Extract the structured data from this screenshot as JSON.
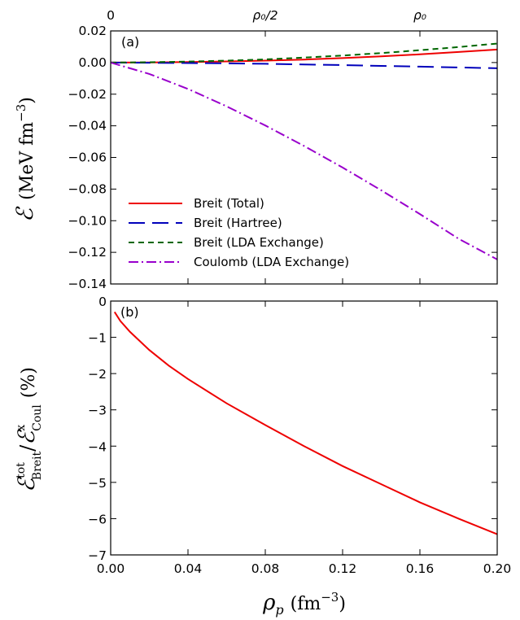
{
  "chart_data": [
    {
      "type": "line",
      "panel_label": "(a)",
      "ylabel": "ℰ (MeV fm⁻³)",
      "xlim": [
        0.0,
        0.2
      ],
      "ylim": [
        -0.14,
        0.02
      ],
      "yticks": [
        0.02,
        0.0,
        -0.02,
        -0.04,
        -0.06,
        -0.08,
        -0.1,
        -0.12,
        -0.14
      ],
      "ytick_labels": [
        "0.02",
        "0.00",
        "−0.02",
        "−0.04",
        "−0.06",
        "−0.08",
        "−0.10",
        "−0.12",
        "−0.14"
      ],
      "top_axis": {
        "ticks": [
          0.0,
          0.08,
          0.16
        ],
        "labels": [
          "0",
          "ρ₀/2",
          "ρ₀"
        ]
      },
      "legend_position": "lower-left",
      "x": [
        0.0,
        0.02,
        0.04,
        0.06,
        0.08,
        0.1,
        0.12,
        0.14,
        0.16,
        0.18,
        0.2
      ],
      "series": [
        {
          "name": "Breit (Total)",
          "color": "#ee0000",
          "style": "solid",
          "values": [
            0.0,
            0.0001,
            0.0003,
            0.0007,
            0.0012,
            0.0019,
            0.0028,
            0.0039,
            0.0052,
            0.0067,
            0.0082
          ]
        },
        {
          "name": "Breit (Hartree)",
          "color": "#0000bb",
          "style": "long-dash",
          "values": [
            0.0,
            -0.0001,
            -0.0003,
            -0.0005,
            -0.0008,
            -0.0012,
            -0.0016,
            -0.0021,
            -0.0026,
            -0.0031,
            -0.0036
          ]
        },
        {
          "name": "Breit (LDA Exchange)",
          "color": "#006600",
          "style": "dash",
          "values": [
            0.0,
            0.0002,
            0.0006,
            0.0012,
            0.002,
            0.0031,
            0.0044,
            0.006,
            0.0078,
            0.0098,
            0.012
          ]
        },
        {
          "name": "Coulomb (LDA Exchange)",
          "color": "#9900cc",
          "style": "dash-dot",
          "values": [
            0.0,
            -0.0072,
            -0.0167,
            -0.0277,
            -0.0398,
            -0.0527,
            -0.0664,
            -0.0808,
            -0.0958,
            -0.1114,
            -0.1245
          ]
        }
      ]
    },
    {
      "type": "line",
      "panel_label": "(b)",
      "xlabel": "ρ_p (fm⁻³)",
      "ylabel": "ℰ^tot_Breit / ℰ^x_Coul (%)",
      "xlim": [
        0.0,
        0.2
      ],
      "ylim": [
        -7,
        0
      ],
      "xticks": [
        0.0,
        0.04,
        0.08,
        0.12,
        0.16,
        0.2
      ],
      "xtick_labels": [
        "0.00",
        "0.04",
        "0.08",
        "0.12",
        "0.16",
        "0.20"
      ],
      "yticks": [
        0,
        -1,
        -2,
        -3,
        -4,
        -5,
        -6,
        -7
      ],
      "ytick_labels": [
        "0",
        "−1",
        "−2",
        "−3",
        "−4",
        "−5",
        "−6",
        "−7"
      ],
      "x": [
        0.002,
        0.005,
        0.01,
        0.02,
        0.03,
        0.04,
        0.06,
        0.08,
        0.1,
        0.12,
        0.14,
        0.16,
        0.18,
        0.2
      ],
      "series": [
        {
          "color": "#ee0000",
          "style": "solid",
          "values": [
            -0.3,
            -0.55,
            -0.85,
            -1.35,
            -1.78,
            -2.15,
            -2.82,
            -3.42,
            -4.0,
            -4.55,
            -5.05,
            -5.55,
            -6.0,
            -6.43
          ]
        }
      ]
    }
  ]
}
